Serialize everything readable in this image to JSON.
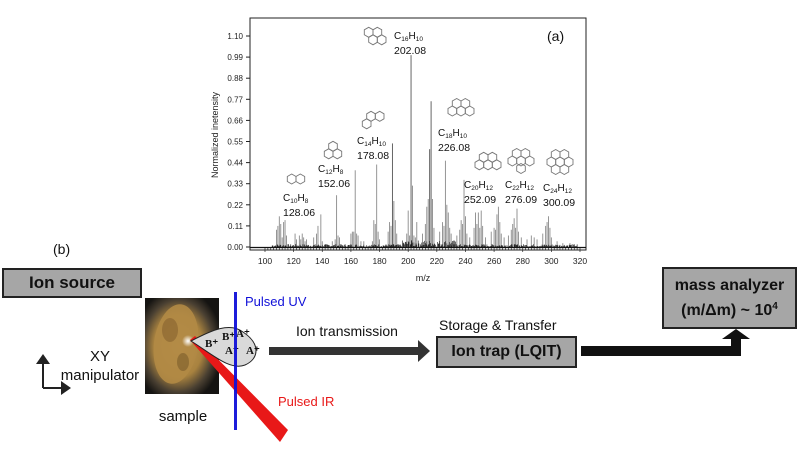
{
  "panel_labels": {
    "a": "(a)",
    "b": "(b)"
  },
  "chart_data": {
    "type": "bar",
    "title": "",
    "xlabel": "m/z",
    "ylabel": "Normalized inetensity",
    "xlim": [
      100,
      320
    ],
    "ylim": [
      0.0,
      1.15
    ],
    "xticks": [
      100,
      120,
      140,
      160,
      180,
      200,
      220,
      240,
      260,
      280,
      300,
      320
    ],
    "yticks": [
      "0.00",
      "0.11",
      "0.22",
      "0.33",
      "0.44",
      "0.55",
      "0.66",
      "0.77",
      "0.88",
      "0.99",
      "1.10"
    ],
    "grid": false,
    "peaks": [
      {
        "mz": 108,
        "v": 0.09
      },
      {
        "mz": 109,
        "v": 0.11
      },
      {
        "mz": 110,
        "v": 0.16
      },
      {
        "mz": 111,
        "v": 0.12
      },
      {
        "mz": 112,
        "v": 0.05
      },
      {
        "mz": 113,
        "v": 0.13
      },
      {
        "mz": 114,
        "v": 0.14
      },
      {
        "mz": 115,
        "v": 0.06
      },
      {
        "mz": 121,
        "v": 0.07
      },
      {
        "mz": 122,
        "v": 0.04
      },
      {
        "mz": 124,
        "v": 0.06
      },
      {
        "mz": 125,
        "v": 0.04
      },
      {
        "mz": 126,
        "v": 0.07
      },
      {
        "mz": 127,
        "v": 0.05
      },
      {
        "mz": 128,
        "v": 0.03
      },
      {
        "mz": 129,
        "v": 0.04
      },
      {
        "mz": 134,
        "v": 0.05
      },
      {
        "mz": 136,
        "v": 0.07
      },
      {
        "mz": 137,
        "v": 0.11
      },
      {
        "mz": 139,
        "v": 0.17
      },
      {
        "mz": 140,
        "v": 0.03
      },
      {
        "mz": 147,
        "v": 0.03
      },
      {
        "mz": 149,
        "v": 0.04
      },
      {
        "mz": 150,
        "v": 0.27
      },
      {
        "mz": 151,
        "v": 0.06
      },
      {
        "mz": 152,
        "v": 0.05
      },
      {
        "mz": 160,
        "v": 0.07
      },
      {
        "mz": 161,
        "v": 0.08
      },
      {
        "mz": 162,
        "v": 0.08
      },
      {
        "mz": 163,
        "v": 0.4
      },
      {
        "mz": 164,
        "v": 0.07
      },
      {
        "mz": 165,
        "v": 0.06
      },
      {
        "mz": 167,
        "v": 0.03
      },
      {
        "mz": 169,
        "v": 0.03
      },
      {
        "mz": 175,
        "v": 0.03
      },
      {
        "mz": 176,
        "v": 0.14
      },
      {
        "mz": 177,
        "v": 0.12
      },
      {
        "mz": 178,
        "v": 0.43
      },
      {
        "mz": 179,
        "v": 0.08
      },
      {
        "mz": 180,
        "v": 0.04
      },
      {
        "mz": 186,
        "v": 0.08
      },
      {
        "mz": 187,
        "v": 0.13
      },
      {
        "mz": 188,
        "v": 0.11
      },
      {
        "mz": 189,
        "v": 0.54
      },
      {
        "mz": 190,
        "v": 0.24
      },
      {
        "mz": 191,
        "v": 0.14
      },
      {
        "mz": 192,
        "v": 0.07
      },
      {
        "mz": 199,
        "v": 0.07
      },
      {
        "mz": 200,
        "v": 0.19
      },
      {
        "mz": 201,
        "v": 0.06
      },
      {
        "mz": 202,
        "v": 1.0
      },
      {
        "mz": 203,
        "v": 0.32
      },
      {
        "mz": 204,
        "v": 0.06
      },
      {
        "mz": 205,
        "v": 0.05
      },
      {
        "mz": 206,
        "v": 0.13
      },
      {
        "mz": 210,
        "v": 0.07
      },
      {
        "mz": 212,
        "v": 0.12
      },
      {
        "mz": 213,
        "v": 0.21
      },
      {
        "mz": 214,
        "v": 0.25
      },
      {
        "mz": 215,
        "v": 0.51
      },
      {
        "mz": 216,
        "v": 0.76
      },
      {
        "mz": 217,
        "v": 0.25
      },
      {
        "mz": 218,
        "v": 0.1
      },
      {
        "mz": 222,
        "v": 0.08
      },
      {
        "mz": 224,
        "v": 0.13
      },
      {
        "mz": 225,
        "v": 0.11
      },
      {
        "mz": 226,
        "v": 0.45
      },
      {
        "mz": 227,
        "v": 0.22
      },
      {
        "mz": 228,
        "v": 0.18
      },
      {
        "mz": 229,
        "v": 0.1
      },
      {
        "mz": 230,
        "v": 0.07
      },
      {
        "mz": 234,
        "v": 0.06
      },
      {
        "mz": 236,
        "v": 0.09
      },
      {
        "mz": 237,
        "v": 0.14
      },
      {
        "mz": 238,
        "v": 0.12
      },
      {
        "mz": 239,
        "v": 0.35
      },
      {
        "mz": 240,
        "v": 0.16
      },
      {
        "mz": 241,
        "v": 0.07
      },
      {
        "mz": 243,
        "v": 0.05
      },
      {
        "mz": 246,
        "v": 0.1
      },
      {
        "mz": 247,
        "v": 0.18
      },
      {
        "mz": 248,
        "v": 0.12
      },
      {
        "mz": 249,
        "v": 0.18
      },
      {
        "mz": 250,
        "v": 0.1
      },
      {
        "mz": 251,
        "v": 0.19
      },
      {
        "mz": 252,
        "v": 0.11
      },
      {
        "mz": 254,
        "v": 0.05
      },
      {
        "mz": 258,
        "v": 0.08
      },
      {
        "mz": 260,
        "v": 0.1
      },
      {
        "mz": 261,
        "v": 0.09
      },
      {
        "mz": 262,
        "v": 0.17
      },
      {
        "mz": 263,
        "v": 0.21
      },
      {
        "mz": 264,
        "v": 0.13
      },
      {
        "mz": 265,
        "v": 0.07
      },
      {
        "mz": 267,
        "v": 0.05
      },
      {
        "mz": 270,
        "v": 0.06
      },
      {
        "mz": 272,
        "v": 0.09
      },
      {
        "mz": 273,
        "v": 0.12
      },
      {
        "mz": 274,
        "v": 0.15
      },
      {
        "mz": 275,
        "v": 0.1
      },
      {
        "mz": 276,
        "v": 0.2
      },
      {
        "mz": 277,
        "v": 0.08
      },
      {
        "mz": 279,
        "v": 0.05
      },
      {
        "mz": 283,
        "v": 0.04
      },
      {
        "mz": 286,
        "v": 0.06
      },
      {
        "mz": 288,
        "v": 0.05
      },
      {
        "mz": 290,
        "v": 0.04
      },
      {
        "mz": 294,
        "v": 0.07
      },
      {
        "mz": 296,
        "v": 0.11
      },
      {
        "mz": 297,
        "v": 0.13
      },
      {
        "mz": 298,
        "v": 0.16
      },
      {
        "mz": 299,
        "v": 0.1
      },
      {
        "mz": 300,
        "v": 0.05
      },
      {
        "mz": 304,
        "v": 0.03
      },
      {
        "mz": 308,
        "v": 0.02
      },
      {
        "mz": 313,
        "v": 0.02
      }
    ],
    "annotations": [
      {
        "formula_c": "10",
        "formula_h": "8",
        "mass": "128.06",
        "molecule": "naphthalene"
      },
      {
        "formula_c": "12",
        "formula_h": "8",
        "mass": "152.06",
        "molecule": "acenaphthylene"
      },
      {
        "formula_c": "14",
        "formula_h": "10",
        "mass": "178.08",
        "molecule": "phenanthrene"
      },
      {
        "formula_c": "16",
        "formula_h": "10",
        "mass": "202.08",
        "molecule": "pyrene"
      },
      {
        "formula_c": "18",
        "formula_h": "10",
        "mass": "226.08",
        "molecule": "cyclopenta-pyrene"
      },
      {
        "formula_c": "20",
        "formula_h": "12",
        "mass": "252.09",
        "molecule": "benzopyrene"
      },
      {
        "formula_c": "22",
        "formula_h": "12",
        "mass": "276.09",
        "molecule": "benzoperylene"
      },
      {
        "formula_c": "24",
        "formula_h": "12",
        "mass": "300.09",
        "molecule": "coronene"
      }
    ]
  },
  "diagram": {
    "ion_source": "Ion source",
    "xy_label_1": "XY",
    "xy_label_2": "manipulator",
    "sample_label": "sample",
    "pulsed_uv": "Pulsed UV",
    "pulsed_ir": "Pulsed IR",
    "ion_transmission": "Ion transmission",
    "storage_transfer": "Storage & Transfer",
    "ion_trap": "Ion trap (LQIT)",
    "mass_analyzer_1": "mass analyzer",
    "mass_analyzer_2": "(m/Δm) ~ 10",
    "mass_analyzer_exp": "4",
    "ions": [
      "B⁺",
      "B⁺",
      "A⁺",
      "A⁺",
      "A⁺"
    ],
    "colors": {
      "uv": "#1010d8",
      "ir": "#e81818",
      "box_fill": "#a6a6a6",
      "plume_fill": "#d9d9d9"
    }
  }
}
